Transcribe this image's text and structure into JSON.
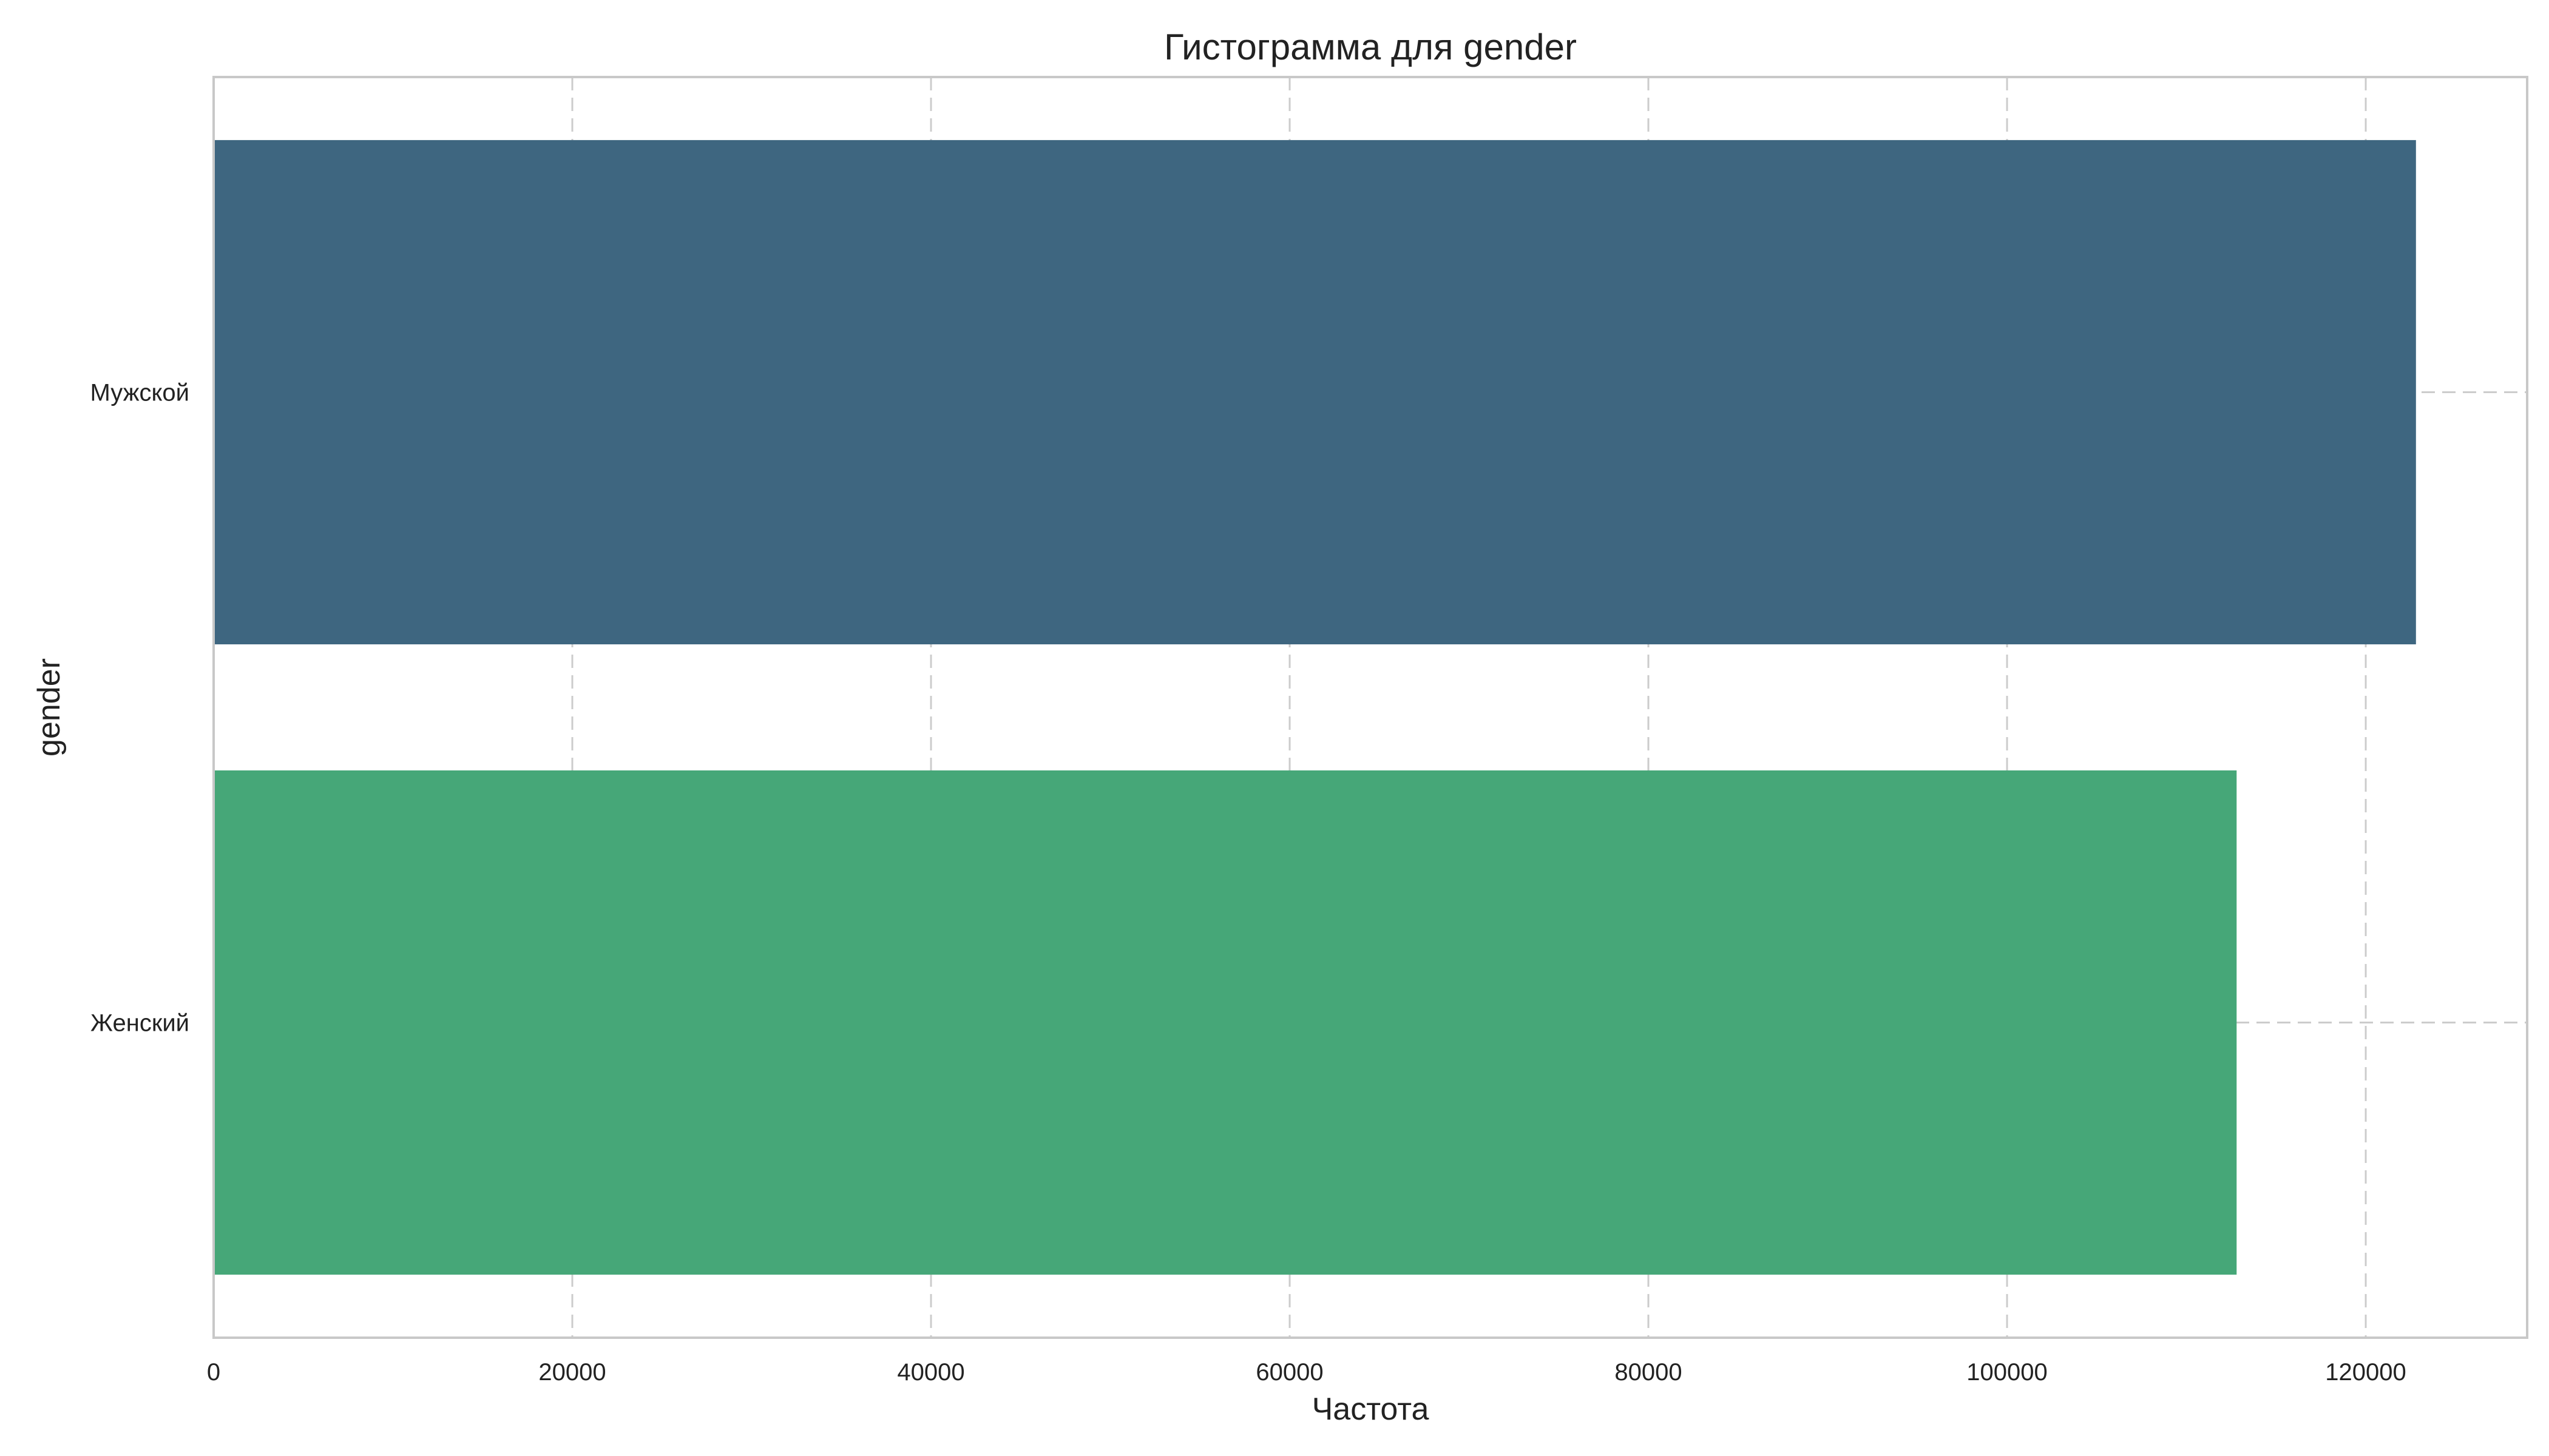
{
  "chart_data": {
    "type": "bar",
    "orientation": "horizontal",
    "title": "Гистограмма для gender",
    "xlabel": "Частота",
    "ylabel": "gender",
    "categories": [
      "Мужской",
      "Женский"
    ],
    "values": [
      122800,
      112800
    ],
    "colors": [
      "#3e6680",
      "#46a778"
    ],
    "xlim": [
      0,
      129000
    ],
    "xticks": [
      0,
      20000,
      40000,
      60000,
      80000,
      100000,
      120000
    ],
    "xtick_labels": [
      "0",
      "20000",
      "40000",
      "60000",
      "80000",
      "100000",
      "120000"
    ],
    "grid": true
  }
}
